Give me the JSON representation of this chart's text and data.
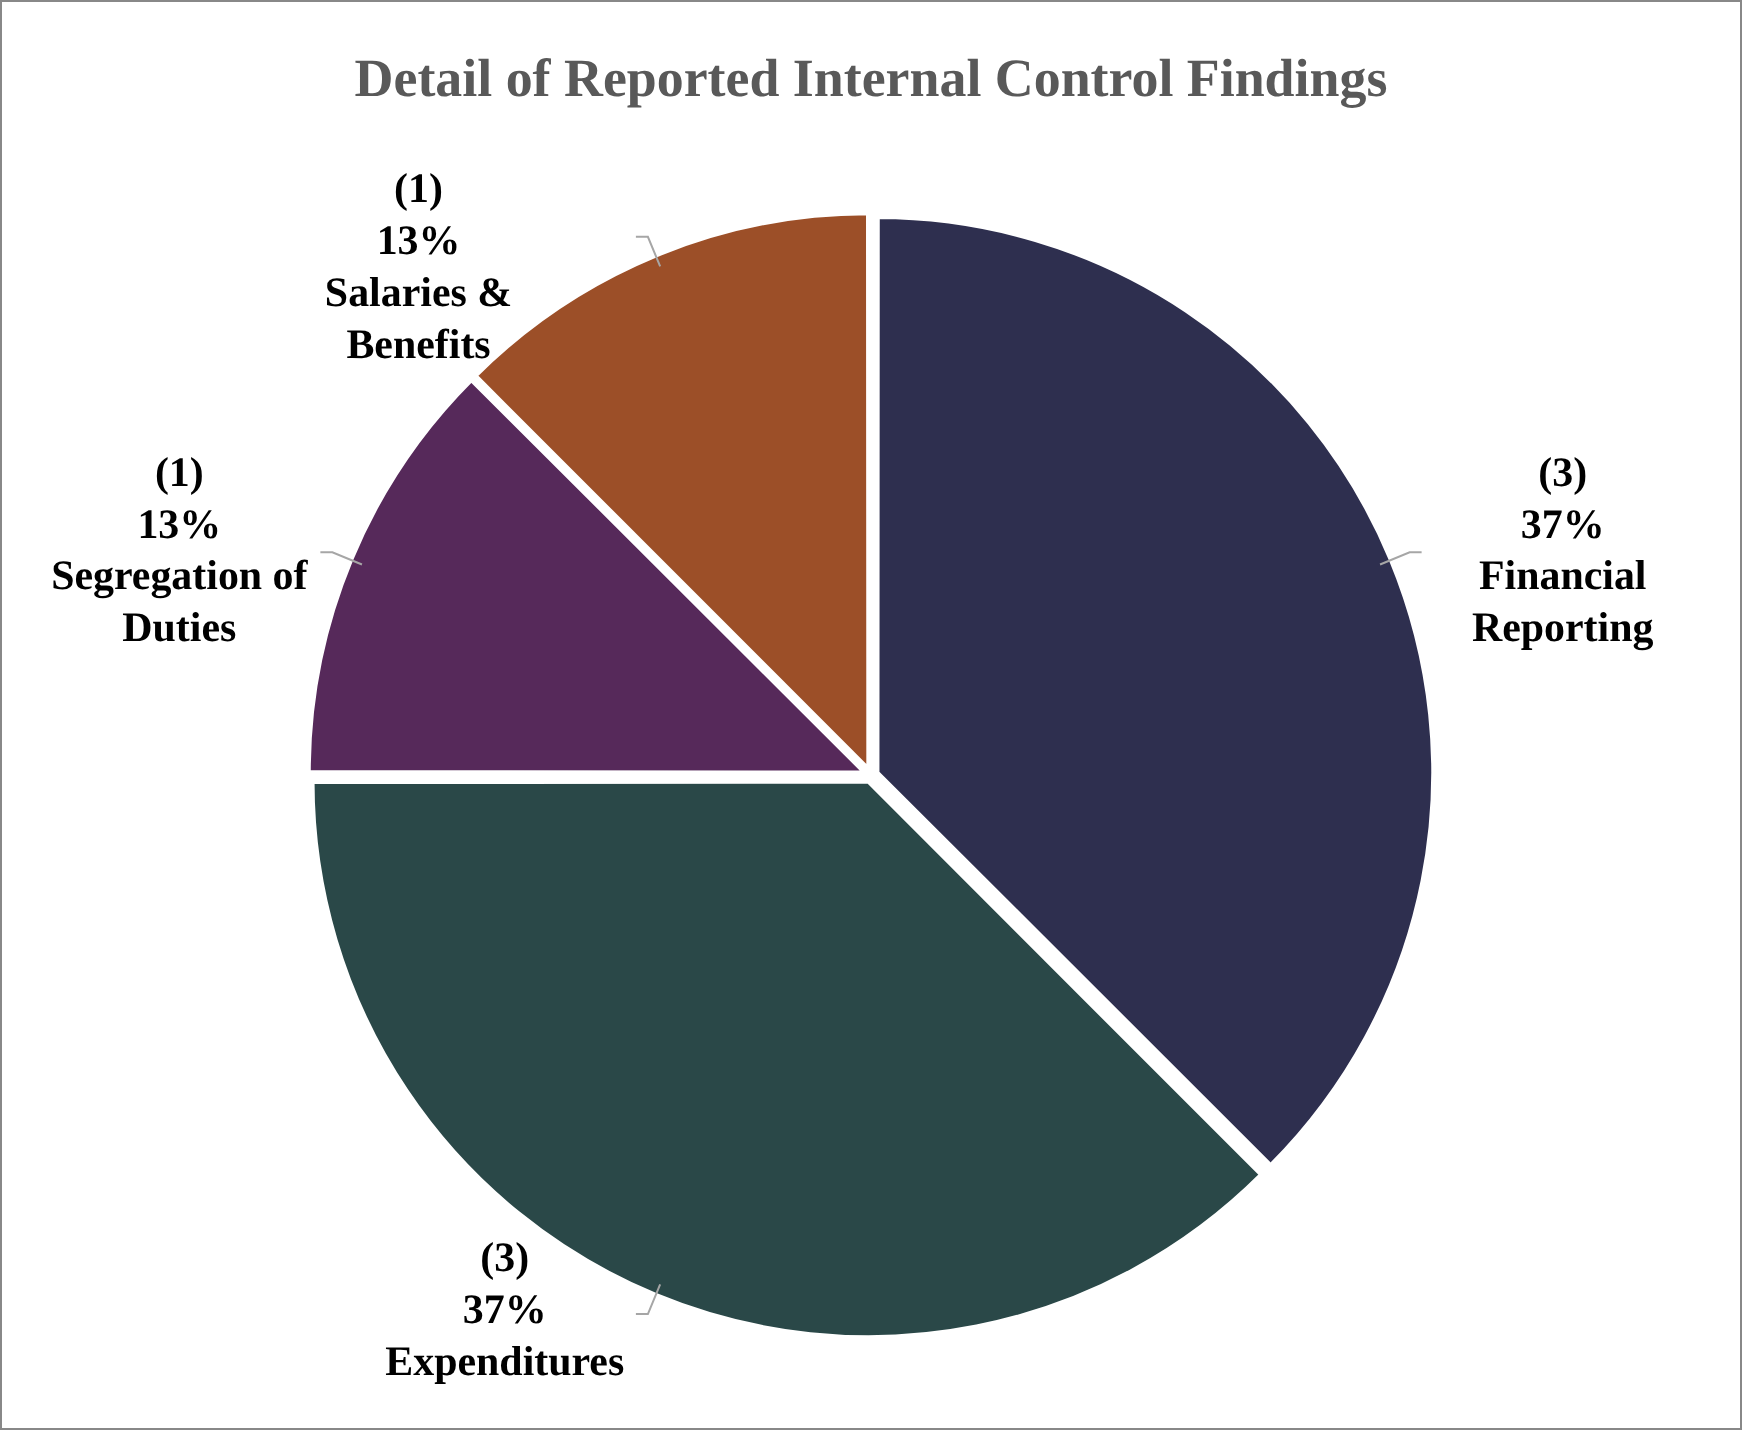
{
  "chart_data": {
    "type": "pie",
    "title": "Detail of Reported Internal Control Findings",
    "categories": [
      "Financial Reporting",
      "Expenditures",
      "Segregation of Duties",
      "Salaries & Benefits"
    ],
    "values": [
      3,
      3,
      1,
      1
    ],
    "value_labels": [
      "(3)\n37%",
      "(3)\n37%",
      "(1)\n13%",
      "(1)\n13%"
    ],
    "colors": [
      "#2e2f4f",
      "#2a4848",
      "#56295a",
      "#9c4f28"
    ],
    "legend": false
  }
}
